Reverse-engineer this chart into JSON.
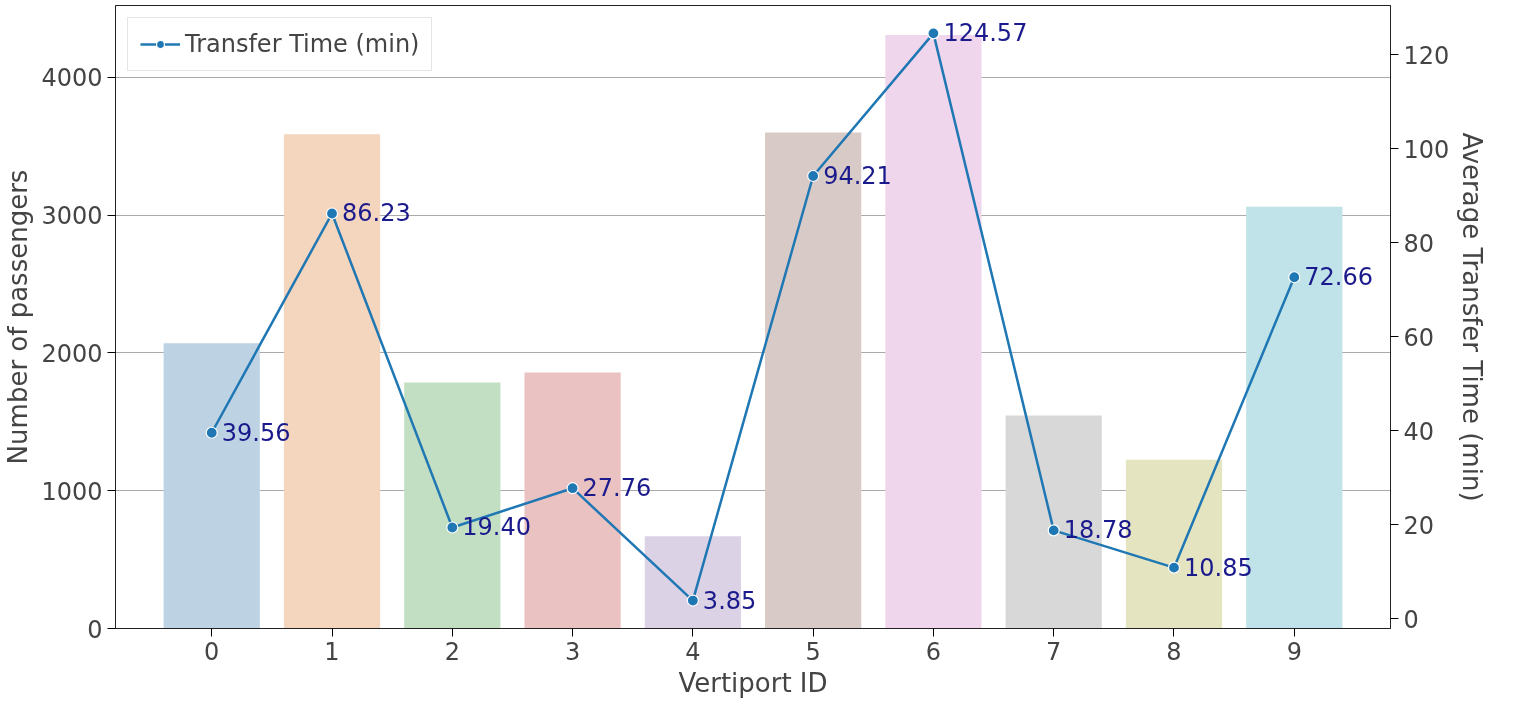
{
  "chart_data": {
    "type": "bar",
    "xlabel": "Vertiport ID",
    "ylabel": "Number of passengers",
    "y2label": "Average Transfer Time (min)",
    "categories": [
      "0",
      "1",
      "2",
      "3",
      "4",
      "5",
      "6",
      "7",
      "8",
      "9"
    ],
    "series": [
      {
        "colors": [
          "#bdd3e3",
          "#f4d5bd",
          "#c3dfc3",
          "#eac2c2",
          "#dbd2e6",
          "#d8cac7",
          "#f0d6ec",
          "#d8d8d8",
          "#e4e4c0",
          "#bfe3e8"
        ],
        "values": [
          2070,
          3585,
          1785,
          1858,
          670,
          3599,
          4306,
          1545,
          1224,
          3060
        ]
      },
      {
        "type": "line",
        "name": "Transfer Time (min)",
        "color": "#1f77b4",
        "axis": "y2",
        "marker": "circle",
        "value_labels": [
          "39.56",
          "86.23",
          "19.40",
          "27.76",
          "3.85",
          "94.21",
          "124.57",
          "18.78",
          "10.85",
          "72.66"
        ],
        "values": [
          39.56,
          86.23,
          19.4,
          27.76,
          3.85,
          94.21,
          124.57,
          18.78,
          10.85,
          72.66
        ]
      }
    ],
    "ylim": [
      0,
      4520
    ],
    "yticks": [
      0,
      1000,
      2000,
      3000,
      4000
    ],
    "y2lim": [
      -2.1,
      130.5
    ],
    "y2ticks": [
      0,
      20,
      40,
      60,
      80,
      100,
      120
    ],
    "grid": "y",
    "legend": "top left"
  }
}
